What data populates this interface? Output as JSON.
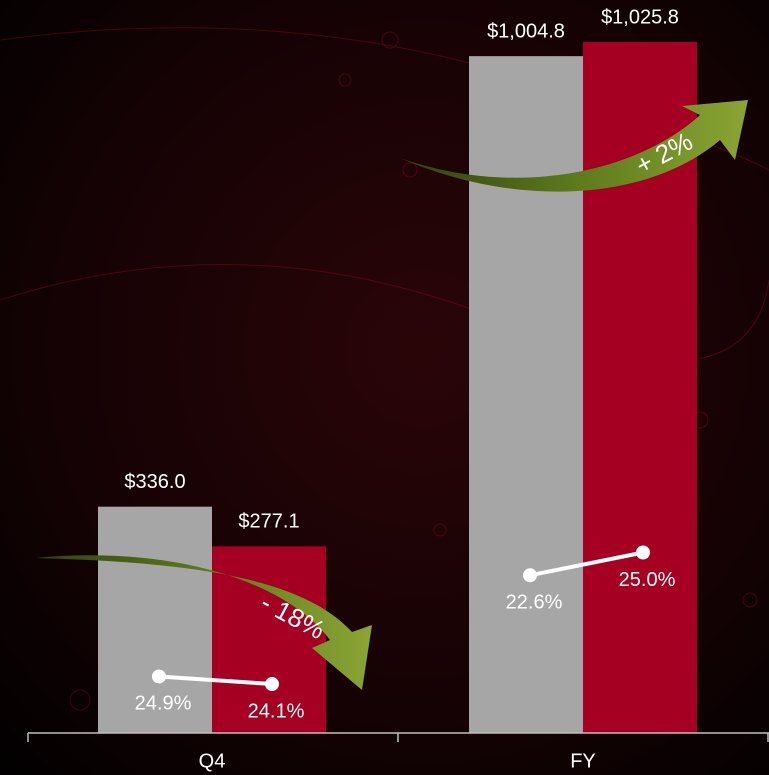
{
  "chart_data": {
    "type": "bar",
    "categories": [
      "Q4",
      "FY"
    ],
    "series": [
      {
        "color": "#a6a6a6",
        "values": [
          336.0,
          1004.8
        ],
        "value_labels": [
          "$336.0",
          "$1,004.8"
        ]
      },
      {
        "color": "#a50021",
        "values": [
          277.1,
          1025.8
        ],
        "value_labels": [
          "$277.1",
          "$1,025.8"
        ]
      }
    ],
    "margin_series": [
      {
        "color": "#ffffff",
        "values": [
          24.9,
          22.6
        ],
        "value_labels": [
          "24.9%",
          "22.6%"
        ]
      },
      {
        "color": "#ffffff",
        "values": [
          24.1,
          25.0
        ],
        "value_labels": [
          "24.1%",
          "25.0%"
        ]
      }
    ],
    "annotations": [
      "- 18%",
      "+ 2%"
    ]
  }
}
